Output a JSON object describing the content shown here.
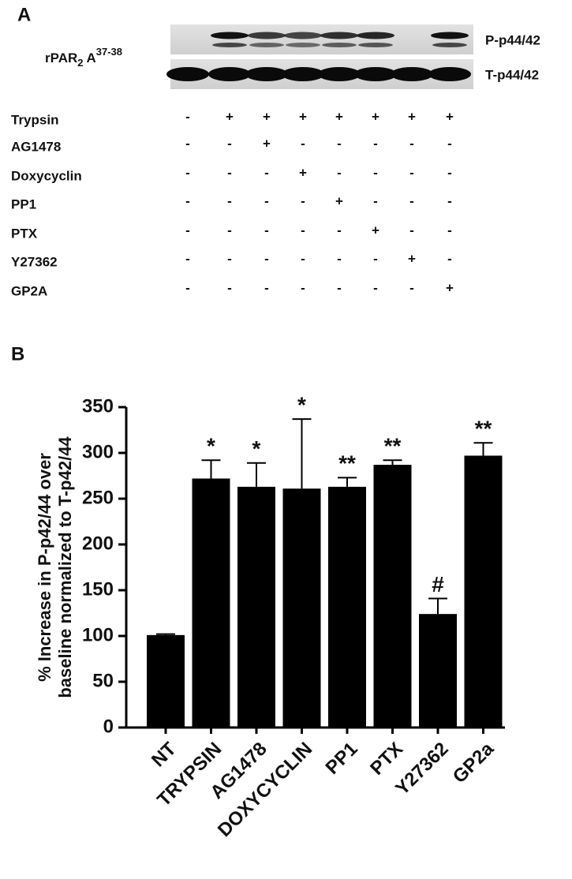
{
  "panel_a": {
    "label": "A",
    "cell_label": [
      "rPAR",
      "2",
      "A",
      "37-38"
    ],
    "blot_labels": [
      "P-p44/42",
      "T-p44/42"
    ],
    "treatments": [
      {
        "name": "Trypsin",
        "marks": [
          "-",
          "+",
          "+",
          "+",
          "+",
          "+",
          "+",
          "+"
        ]
      },
      {
        "name": "AG1478",
        "marks": [
          "-",
          "-",
          "+",
          "-",
          "-",
          "-",
          "-",
          "-"
        ]
      },
      {
        "name": "Doxycyclin",
        "marks": [
          "-",
          "-",
          "-",
          "+",
          "-",
          "-",
          "-",
          "-"
        ]
      },
      {
        "name": "PP1",
        "marks": [
          "-",
          "-",
          "-",
          "-",
          "+",
          "-",
          "-",
          "-"
        ]
      },
      {
        "name": "PTX",
        "marks": [
          "-",
          "-",
          "-",
          "-",
          "-",
          "+",
          "-",
          "-"
        ]
      },
      {
        "name": "Y27362",
        "marks": [
          "-",
          "-",
          "-",
          "-",
          "-",
          "-",
          "+",
          "-"
        ]
      },
      {
        "name": "GP2A",
        "marks": [
          "-",
          "-",
          "-",
          "-",
          "-",
          "-",
          "-",
          "+"
        ]
      }
    ]
  },
  "panel_b": {
    "label": "B"
  },
  "chart_data": {
    "type": "bar",
    "ylabel": [
      "% Increase in P-p42/44 over",
      "baseline normalized to T-p42/44"
    ],
    "categories": [
      "NT",
      "TRYPSIN",
      "AG1478",
      "DOXYCYCLIN",
      "PP1",
      "PTX",
      "Y27362",
      "GP2a"
    ],
    "values": [
      101,
      272,
      263,
      261,
      263,
      287,
      124,
      297
    ],
    "errors": [
      1,
      20,
      26,
      76,
      10,
      5,
      17,
      14
    ],
    "annotations": [
      null,
      "*",
      "*",
      "*",
      "**",
      "**",
      "#",
      "**"
    ],
    "color": "#000000",
    "ylim": [
      0,
      350
    ],
    "yticks": [
      0,
      50,
      100,
      150,
      200,
      250,
      300,
      350
    ]
  }
}
